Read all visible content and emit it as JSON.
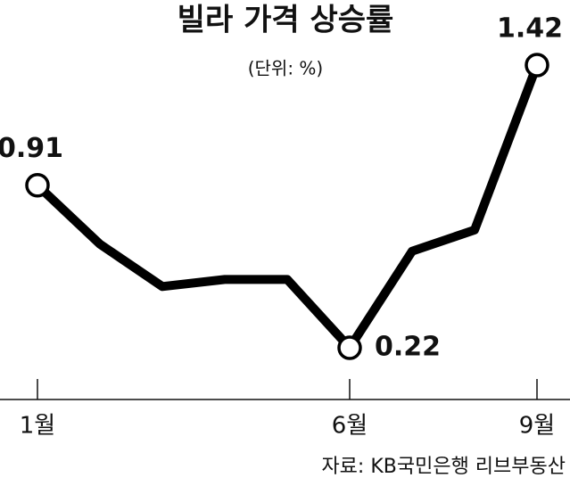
{
  "chart_data": {
    "type": "line",
    "title": "빌라 가격 상승률",
    "subtitle": "(단위: %)",
    "source": "자료: KB국민은행 리브부동산",
    "categories": [
      "1월",
      null,
      null,
      null,
      null,
      "6월",
      null,
      null,
      "9월"
    ],
    "values": [
      0.91,
      0.66,
      0.48,
      0.51,
      0.51,
      0.22,
      0.63,
      0.72,
      1.42
    ],
    "value_labels": [
      "0.91",
      null,
      null,
      null,
      null,
      "0.22",
      null,
      null,
      "1.42"
    ],
    "color": "#000000"
  }
}
